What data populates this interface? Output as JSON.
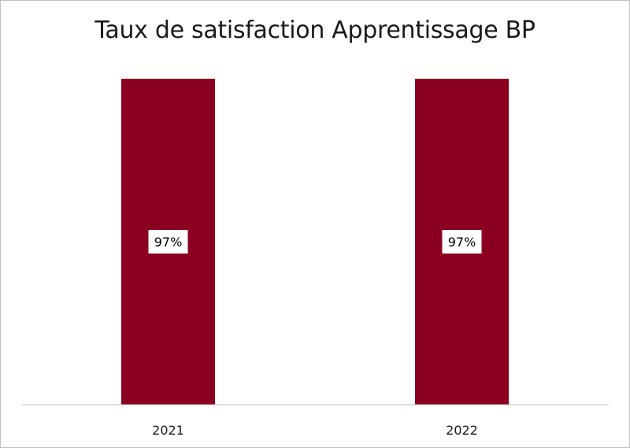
{
  "chart_data": {
    "type": "bar",
    "title": "Taux de satisfaction Apprentissage BP",
    "categories": [
      "2021",
      "2022"
    ],
    "values": [
      97,
      97
    ],
    "data_labels": [
      "97%",
      "97%"
    ],
    "ylim": [
      0,
      97
    ],
    "xlabel": "",
    "ylabel": "",
    "grid": false,
    "legend": "none",
    "bar_color": "#8b0020",
    "axis_color": "#bfbfbf"
  }
}
